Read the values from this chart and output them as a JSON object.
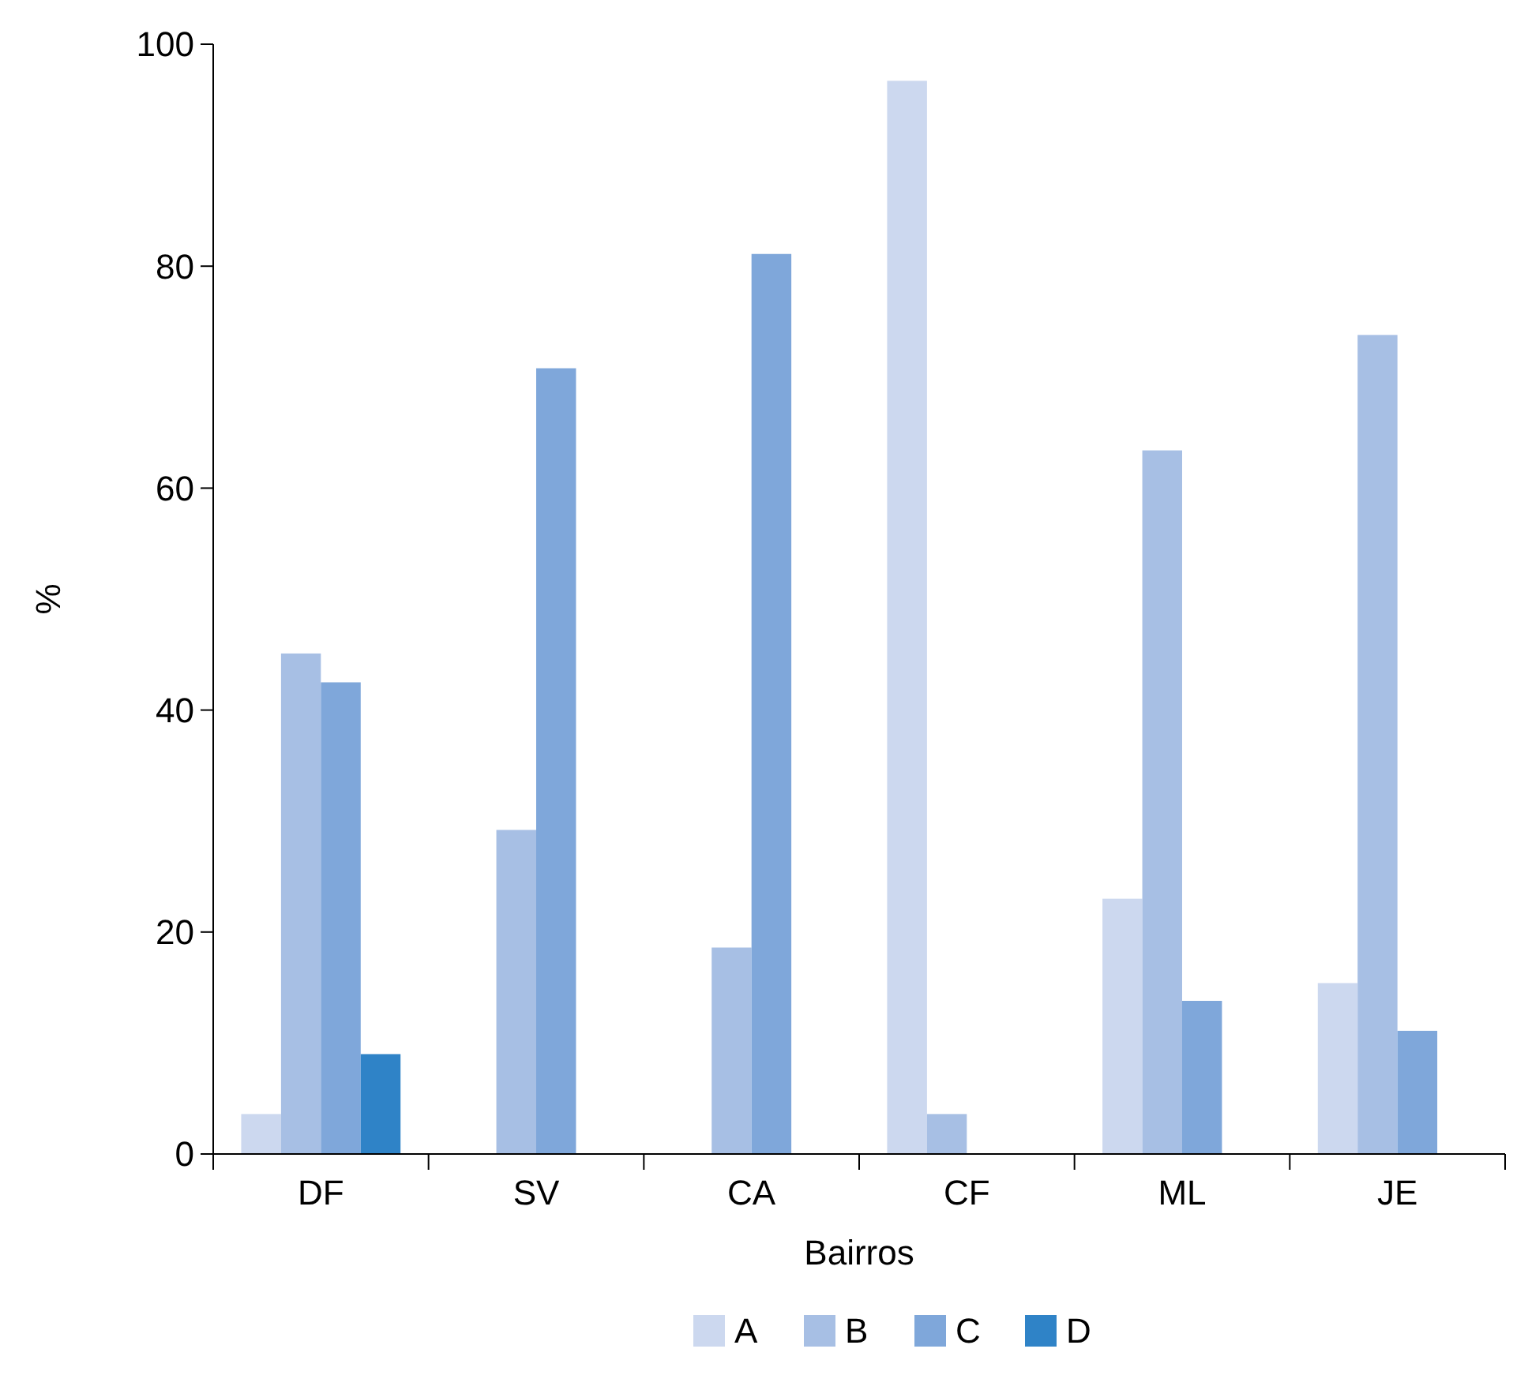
{
  "chart_data": {
    "type": "bar",
    "xlabel": "Bairros",
    "ylabel": "%",
    "categories": [
      "DF",
      "SV",
      "CA",
      "CF",
      "ML",
      "JE"
    ],
    "series": [
      {
        "name": "A",
        "color": "#ccd8ef",
        "values": [
          3.6,
          null,
          null,
          96.7,
          23.0,
          15.4
        ]
      },
      {
        "name": "B",
        "color": "#a7bfe4",
        "values": [
          45.1,
          29.2,
          18.6,
          3.6,
          63.4,
          73.8
        ]
      },
      {
        "name": "C",
        "color": "#7fa7da",
        "values": [
          42.5,
          70.8,
          81.1,
          null,
          13.8,
          11.1
        ]
      },
      {
        "name": "D",
        "color": "#2f83c7",
        "values": [
          9.0,
          null,
          null,
          null,
          null,
          null
        ]
      }
    ],
    "ylim": [
      0,
      100
    ],
    "yticks": [
      0,
      20,
      40,
      60,
      80,
      100
    ],
    "grid": false,
    "legend": "bottom"
  }
}
